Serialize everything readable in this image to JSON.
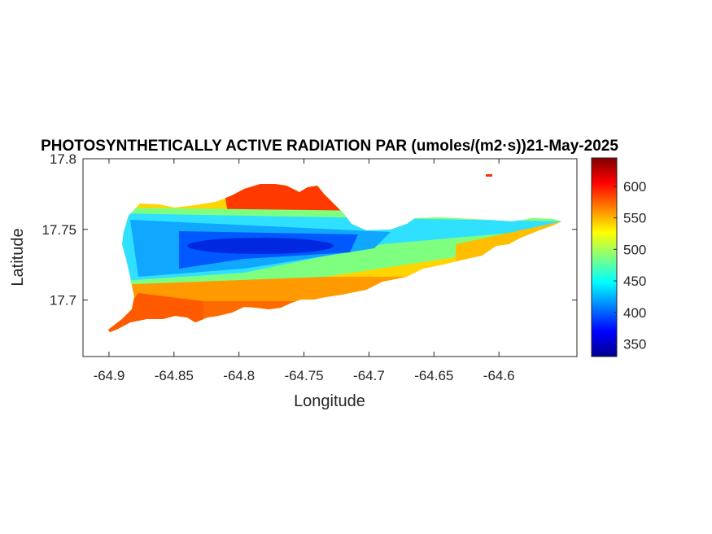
{
  "chart_data": {
    "type": "heatmap",
    "title": "PHOTOSYNTHETICALLY ACTIVE RADIATION PAR (umoles/(m2·s))21-May-2025",
    "xlabel": "Longitude",
    "ylabel": "Latitude",
    "xlim": [
      -64.92,
      -64.54
    ],
    "ylim": [
      17.66,
      17.8
    ],
    "x_ticks": [
      "-64.9",
      "-64.85",
      "-64.8",
      "-64.75",
      "-64.7",
      "-64.65",
      "-64.6"
    ],
    "x_tick_values": [
      -64.9,
      -64.85,
      -64.8,
      -64.75,
      -64.7,
      -64.65,
      -64.6
    ],
    "y_ticks": [
      "17.8",
      "17.75",
      "17.7"
    ],
    "y_tick_values": [
      17.8,
      17.75,
      17.7
    ],
    "colorbar": {
      "range": [
        330,
        645
      ],
      "ticks": [
        "350",
        "400",
        "450",
        "500",
        "550",
        "600"
      ],
      "tick_values": [
        350,
        400,
        450,
        500,
        550,
        600
      ],
      "colormap": "jet"
    },
    "region_summary": {
      "min_value": 340,
      "max_value": 640,
      "low_band_latitude": 17.74,
      "notes_low": "core of lowest values (~340-380) around lon -64.84 to -64.72",
      "notes_high": "highest values (~600-640) along north coast near lon -64.8 to -64.75 and south-west coast"
    }
  }
}
